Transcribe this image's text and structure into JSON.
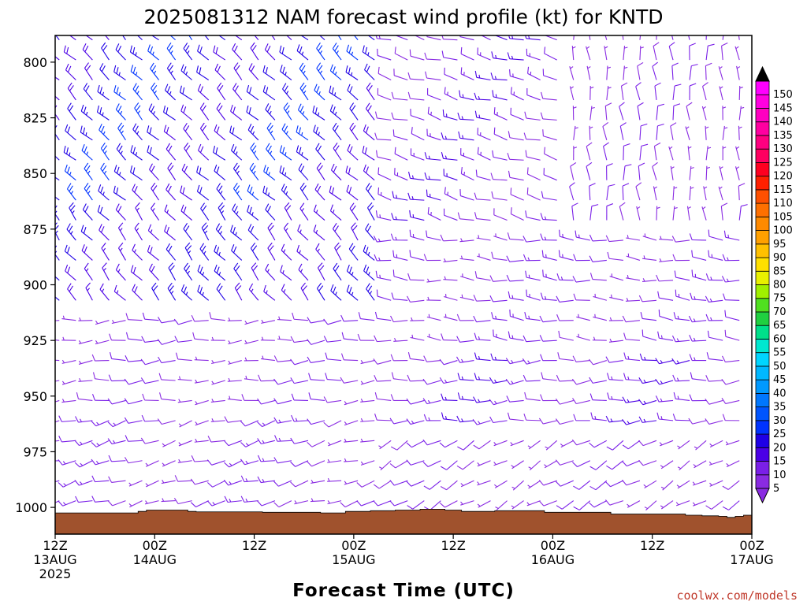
{
  "chart_data": {
    "type": "wind-barb-time-height",
    "title": "2025081312 NAM forecast wind profile (kt) for KNTD",
    "xlabel": "Forecast Time (UTC)",
    "ylabel": "",
    "y_axis": {
      "reversed": true,
      "range": [
        788,
        1012
      ],
      "ticks": [
        800,
        825,
        850,
        875,
        900,
        925,
        950,
        975,
        1000
      ]
    },
    "x_axis": {
      "range_hours": [
        0,
        84
      ],
      "ticks": [
        {
          "hour": 0,
          "line1": "12Z",
          "line2": "13AUG",
          "line3": "2025"
        },
        {
          "hour": 12,
          "line1": "00Z",
          "line2": "14AUG",
          "line3": ""
        },
        {
          "hour": 24,
          "line1": "12Z",
          "line2": "",
          "line3": ""
        },
        {
          "hour": 36,
          "line1": "00Z",
          "line2": "15AUG",
          "line3": ""
        },
        {
          "hour": 48,
          "line1": "12Z",
          "line2": "",
          "line3": ""
        },
        {
          "hour": 60,
          "line1": "00Z",
          "line2": "16AUG",
          "line3": ""
        },
        {
          "hour": 72,
          "line1": "12Z",
          "line2": "",
          "line3": ""
        },
        {
          "hour": 84,
          "line1": "00Z",
          "line2": "17AUG",
          "line3": ""
        }
      ]
    },
    "colorbar": {
      "labels": [
        5,
        10,
        15,
        20,
        25,
        30,
        35,
        40,
        45,
        50,
        55,
        60,
        65,
        70,
        75,
        80,
        85,
        90,
        95,
        100,
        105,
        110,
        115,
        120,
        125,
        130,
        135,
        140,
        145,
        150
      ],
      "colors": [
        "#8a2be2",
        "#7a1fe8",
        "#4b00e6",
        "#1f00e6",
        "#0033ff",
        "#0055ff",
        "#0077ff",
        "#0099ff",
        "#00b8ff",
        "#00d5ff",
        "#00e8d0",
        "#00e08a",
        "#20d040",
        "#50e020",
        "#a0f000",
        "#e8f000",
        "#ffe000",
        "#ffc000",
        "#ffa000",
        "#ff8a00",
        "#ff7000",
        "#ff5000",
        "#ff2000",
        "#ff0020",
        "#ff0060",
        "#ff0080",
        "#ff00a0",
        "#ff00c0",
        "#ff00e0",
        "#ff00ff"
      ]
    },
    "terrain_color": "#a0522d",
    "terrain_top_pressure": [
      1002.5,
      1002.5,
      1002.5,
      1002.5,
      1002.5,
      1002.5,
      1002.5,
      1002.5,
      1002.5,
      1002.5,
      1001.8,
      1001.2,
      1001.2,
      1001.2,
      1001.2,
      1001.2,
      1001.8,
      1002.0,
      1002.0,
      1002.0,
      1002.0,
      1002.0,
      1002.0,
      1002.0,
      1002.0,
      1002.2,
      1002.2,
      1002.2,
      1002.2,
      1002.2,
      1002.2,
      1002.2,
      1002.5,
      1002.5,
      1002.5,
      1001.8,
      1001.8,
      1001.8,
      1001.5,
      1001.5,
      1001.5,
      1001.2,
      1001.2,
      1001.2,
      1000.8,
      1000.8,
      1000.8,
      1001.2,
      1001.2,
      1001.8,
      1001.8,
      1001.8,
      1001.8,
      1001.5,
      1001.5,
      1001.5,
      1001.5,
      1001.5,
      1001.5,
      1002.2,
      1002.2,
      1002.2,
      1002.2,
      1002.2,
      1002.2,
      1002.2,
      1002.2,
      1003.0,
      1003.0,
      1003.0,
      1003.0,
      1003.0,
      1003.0,
      1003.0,
      1003.0,
      1003.0,
      1003.5,
      1003.5,
      1003.8,
      1003.8,
      1004.0,
      1004.5,
      1004.0,
      1003.5,
      1003.5
    ],
    "wind_regimes_note": "barbs at 2 per forecast hour spacing",
    "barb_regimes": [
      {
        "p_min": 788,
        "p_max": 870,
        "h_min": 0,
        "h_max": 40,
        "dir": 315,
        "spd": 22
      },
      {
        "p_min": 870,
        "p_max": 912,
        "h_min": 0,
        "h_max": 40,
        "dir": 320,
        "spd": 20
      },
      {
        "p_min": 788,
        "p_max": 880,
        "h_min": 40,
        "h_max": 62,
        "dir": 285,
        "spd": 12
      },
      {
        "p_min": 788,
        "p_max": 880,
        "h_min": 62,
        "h_max": 84,
        "dir": 355,
        "spd": 8
      },
      {
        "p_min": 880,
        "p_max": 930,
        "h_min": 40,
        "h_max": 84,
        "dir": 275,
        "spd": 10
      },
      {
        "p_min": 912,
        "p_max": 960,
        "h_min": 0,
        "h_max": 40,
        "dir": 265,
        "spd": 8
      },
      {
        "p_min": 930,
        "p_max": 965,
        "h_min": 40,
        "h_max": 84,
        "dir": 265,
        "spd": 12
      },
      {
        "p_min": 960,
        "p_max": 1012,
        "h_min": 0,
        "h_max": 40,
        "dir": 255,
        "spd": 10
      },
      {
        "p_min": 965,
        "p_max": 1012,
        "h_min": 40,
        "h_max": 84,
        "dir": 240,
        "spd": 8
      }
    ],
    "credit": "coolwx.com/models"
  }
}
